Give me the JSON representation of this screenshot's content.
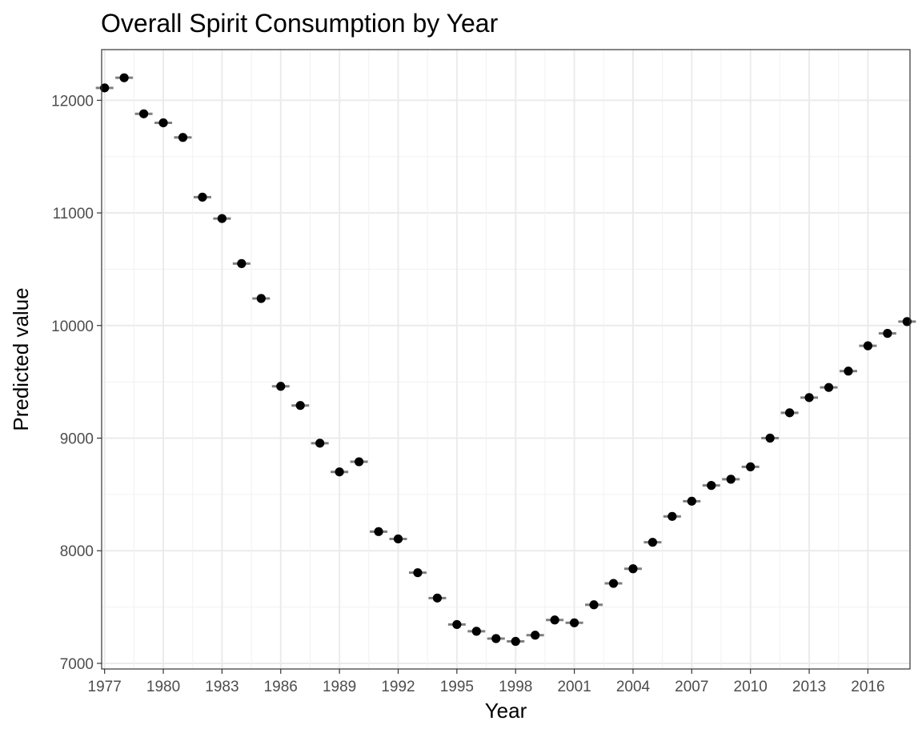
{
  "chart_data": {
    "type": "scatter",
    "title": "Overall Spirit Consumption by Year",
    "xlabel": "Year",
    "ylabel": "Predicted value",
    "xlim": [
      1976.85,
      2018.15
    ],
    "ylim": [
      6950,
      12450
    ],
    "x_ticks": [
      "1977",
      "1980",
      "1983",
      "1986",
      "1989",
      "1992",
      "1995",
      "1998",
      "2001",
      "2004",
      "2007",
      "2010",
      "2013",
      "2016"
    ],
    "y_ticks": [
      "7000",
      "8000",
      "9000",
      "10000",
      "11000",
      "12000"
    ],
    "grid": true,
    "legend": "none",
    "series": [
      {
        "x": [
          1977,
          1978,
          1979,
          1980,
          1981,
          1982,
          1983,
          1984,
          1985,
          1986,
          1987,
          1988,
          1989,
          1990,
          1991,
          1992,
          1993,
          1994,
          1995,
          1996,
          1997,
          1998,
          1999,
          2000,
          2001,
          2002,
          2003,
          2004,
          2005,
          2006,
          2007,
          2008,
          2009,
          2010,
          2011,
          2012,
          2013,
          2014,
          2015,
          2016,
          2017,
          2018
        ],
        "y": [
          12110,
          12200,
          11880,
          11800,
          11670,
          11140,
          10950,
          10550,
          10240,
          9460,
          9290,
          8955,
          8700,
          8790,
          8170,
          8105,
          7805,
          7580,
          7345,
          7285,
          7220,
          7195,
          7250,
          7385,
          7360,
          7520,
          7710,
          7840,
          8075,
          8305,
          8440,
          8580,
          8635,
          8745,
          9000,
          9225,
          9360,
          9450,
          9595,
          9820,
          9930,
          10035
        ]
      }
    ],
    "colors": {
      "point": "#000000",
      "errorbar": "#7f7f7f",
      "grid_major": "#ebebeb",
      "grid_minor": "#f2f2f2",
      "panel_border": "#333333"
    }
  }
}
